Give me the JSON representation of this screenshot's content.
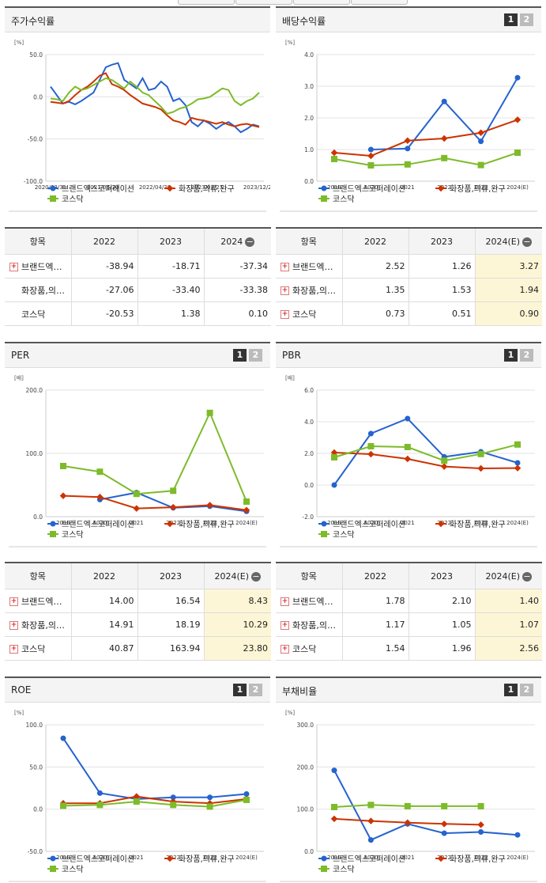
{
  "colors": {
    "brand": "#2563cf",
    "cosmetics": "#cc3300",
    "kosdaq": "#7dbb2a"
  },
  "panels": [
    {
      "id": "p1",
      "title": "주가수익률",
      "pager": false,
      "chart_data": {
        "type": "line",
        "unit": "[%]",
        "ylim": [
          -100,
          50
        ],
        "yticks": [
          "50.0",
          "0.0",
          "-50.0",
          "-100.0"
        ],
        "xticks": [
          "2020/03/31",
          "2021/06/30",
          "2022/04/29",
          "2023/03/27",
          "2023/12/28"
        ],
        "legend": [
          "브랜드엑스코퍼레이션",
          "화장품,의류,완구",
          "코스닥"
        ],
        "series": [
          {
            "key": "brand",
            "values": [
              12,
              2,
              -8,
              -6,
              -9,
              -5,
              0,
              5,
              20,
              35,
              38,
              40,
              20,
              15,
              10,
              22,
              8,
              10,
              18,
              12,
              -5,
              -2,
              -10,
              -30,
              -35,
              -28,
              -32,
              -38,
              -33,
              -30,
              -35,
              -42,
              -38,
              -33,
              -35
            ]
          },
          {
            "key": "cosmetics",
            "values": [
              -6,
              -7,
              -8,
              -5,
              2,
              8,
              12,
              18,
              25,
              28,
              15,
              12,
              8,
              2,
              -3,
              -8,
              -10,
              -12,
              -15,
              -22,
              -28,
              -30,
              -33,
              -25,
              -27,
              -28,
              -30,
              -32,
              -30,
              -33,
              -35,
              -33,
              -32,
              -34,
              -36
            ]
          },
          {
            "key": "kosdaq",
            "values": [
              -2,
              -3,
              -5,
              5,
              12,
              8,
              10,
              14,
              18,
              22,
              20,
              15,
              10,
              18,
              12,
              5,
              2,
              -5,
              -12,
              -20,
              -18,
              -14,
              -12,
              -8,
              -3,
              -2,
              0,
              5,
              10,
              8,
              -5,
              -10,
              -5,
              -2,
              5
            ]
          }
        ]
      }
    },
    {
      "id": "p2",
      "title": "배당수익률",
      "pager": true,
      "p1": "1",
      "p2": "2",
      "chart_data": {
        "type": "line",
        "unit": "[%]",
        "ylim": [
          0,
          4
        ],
        "yticks": [
          "4.0",
          "3.0",
          "2.0",
          "1.0",
          "0.0"
        ],
        "xticks": [
          "2019",
          "2020",
          "2021",
          "2022",
          "2023",
          "2024(E)"
        ],
        "legend": [
          "브랜드엑스코퍼레이션",
          "화장품,의류,완구",
          "코스닥"
        ],
        "series": [
          {
            "key": "brand",
            "values": [
              null,
              1.0,
              1.03,
              2.52,
              1.26,
              3.27
            ]
          },
          {
            "key": "cosmetics",
            "values": [
              0.9,
              0.8,
              1.28,
              1.35,
              1.53,
              1.94
            ]
          },
          {
            "key": "kosdaq",
            "values": [
              0.7,
              0.5,
              0.53,
              0.73,
              0.51,
              0.9
            ]
          }
        ]
      }
    },
    {
      "id": "p3",
      "title": "PER",
      "pager": true,
      "p1": "1",
      "p2": "2",
      "chart_data": {
        "type": "line",
        "unit": "[배]",
        "ylim": [
          0,
          200
        ],
        "yticks": [
          "200.0",
          "100.0",
          "0.0"
        ],
        "xticks": [
          "2019",
          "2020",
          "2021",
          "2022",
          "2023",
          "2024(E)"
        ],
        "legend": [
          "브랜드엑스코퍼레이션",
          "화장품,의류,완구",
          "코스닥"
        ],
        "series": [
          {
            "key": "brand",
            "values": [
              null,
              27,
              38,
              14.0,
              16.54,
              8.43
            ]
          },
          {
            "key": "cosmetics",
            "values": [
              33,
              31,
              13,
              14.91,
              18.19,
              10.29
            ]
          },
          {
            "key": "kosdaq",
            "values": [
              80,
              71,
              36,
              40.87,
              163.94,
              23.8
            ]
          }
        ]
      }
    },
    {
      "id": "p4",
      "title": "PBR",
      "pager": true,
      "p1": "1",
      "p2": "2",
      "chart_data": {
        "type": "line",
        "unit": "[배]",
        "ylim": [
          -2,
          6
        ],
        "yticks": [
          "6.0",
          "4.0",
          "2.0",
          "0.0",
          "-2.0"
        ],
        "xticks": [
          "2019",
          "2020",
          "2021",
          "2022",
          "2023",
          "2024(E)"
        ],
        "legend": [
          "브랜드엑스코퍼레이션",
          "화장품,의류,완구",
          "코스닥"
        ],
        "series": [
          {
            "key": "brand",
            "values": [
              0.0,
              3.25,
              4.2,
              1.78,
              2.1,
              1.4
            ]
          },
          {
            "key": "cosmetics",
            "values": [
              2.05,
              1.95,
              1.65,
              1.17,
              1.05,
              1.07
            ]
          },
          {
            "key": "kosdaq",
            "values": [
              1.75,
              2.45,
              2.4,
              1.54,
              1.96,
              2.56
            ]
          }
        ]
      }
    },
    {
      "id": "p5",
      "title": "ROE",
      "pager": true,
      "p1": "1",
      "p2": "2",
      "chart_data": {
        "type": "line",
        "unit": "[%]",
        "ylim": [
          -50,
          100
        ],
        "yticks": [
          "100.0",
          "50.0",
          "0.0",
          "-50.0"
        ],
        "xticks": [
          "2019",
          "2020",
          "2021",
          "2022",
          "2023",
          "2024(E)"
        ],
        "legend": [
          "브랜드엑스코퍼레이션",
          "화장품,의류,완구",
          "코스닥"
        ],
        "series": [
          {
            "key": "brand",
            "values": [
              84,
              19,
              12,
              14,
              14,
              18
            ]
          },
          {
            "key": "cosmetics",
            "values": [
              7,
              7,
              15,
              9,
              7,
              12
            ]
          },
          {
            "key": "kosdaq",
            "values": [
              4,
              5,
              9,
              5,
              3,
              11
            ]
          }
        ]
      }
    },
    {
      "id": "p6",
      "title": "부채비율",
      "pager": true,
      "p1": "1",
      "p2": "2",
      "chart_data": {
        "type": "line",
        "unit": "[%]",
        "ylim": [
          0,
          300
        ],
        "yticks": [
          "300.0",
          "200.0",
          "100.0",
          "0.0"
        ],
        "xticks": [
          "2019",
          "2020",
          "2021",
          "2022",
          "2023",
          "2024(E)"
        ],
        "legend": [
          "브랜드엑스코퍼레이션",
          "화장품,의류,완구",
          "코스닥"
        ],
        "series": [
          {
            "key": "brand",
            "values": [
              192,
              27,
              65,
              43,
              46,
              39
            ]
          },
          {
            "key": "cosmetics",
            "values": [
              77,
              72,
              68,
              65,
              63,
              null
            ]
          },
          {
            "key": "kosdaq",
            "values": [
              105,
              110,
              107,
              107,
              107,
              null
            ]
          }
        ]
      }
    }
  ],
  "tables": [
    {
      "id": "t1",
      "header": {
        "item": "항목",
        "c1": "2022",
        "c2": "2023",
        "c3": "2024"
      },
      "estimate_col": false,
      "rows": [
        {
          "name": "브랜드엑…",
          "plus": true,
          "v": [
            "-38.94",
            "-18.71",
            "-37.34"
          ]
        },
        {
          "name": "화장품,의…",
          "plus": false,
          "v": [
            "-27.06",
            "-33.40",
            "-33.38"
          ]
        },
        {
          "name": "코스닥",
          "plus": false,
          "v": [
            "-20.53",
            "1.38",
            "0.10"
          ]
        }
      ]
    },
    {
      "id": "t2",
      "header": {
        "item": "항목",
        "c1": "2022",
        "c2": "2023",
        "c3": "2024(E)"
      },
      "estimate_col": true,
      "rows": [
        {
          "name": "브랜드엑…",
          "plus": true,
          "v": [
            "2.52",
            "1.26",
            "3.27"
          ]
        },
        {
          "name": "화장품,의…",
          "plus": true,
          "v": [
            "1.35",
            "1.53",
            "1.94"
          ]
        },
        {
          "name": "코스닥",
          "plus": true,
          "v": [
            "0.73",
            "0.51",
            "0.90"
          ]
        }
      ]
    },
    {
      "id": "t3",
      "header": {
        "item": "항목",
        "c1": "2022",
        "c2": "2023",
        "c3": "2024(E)"
      },
      "estimate_col": true,
      "rows": [
        {
          "name": "브랜드엑…",
          "plus": true,
          "v": [
            "14.00",
            "16.54",
            "8.43"
          ]
        },
        {
          "name": "화장품,의…",
          "plus": true,
          "v": [
            "14.91",
            "18.19",
            "10.29"
          ]
        },
        {
          "name": "코스닥",
          "plus": true,
          "v": [
            "40.87",
            "163.94",
            "23.80"
          ]
        }
      ]
    },
    {
      "id": "t4",
      "header": {
        "item": "항목",
        "c1": "2022",
        "c2": "2023",
        "c3": "2024(E)"
      },
      "estimate_col": true,
      "rows": [
        {
          "name": "브랜드엑…",
          "plus": true,
          "v": [
            "1.78",
            "2.10",
            "1.40"
          ]
        },
        {
          "name": "화장품,의…",
          "plus": true,
          "v": [
            "1.17",
            "1.05",
            "1.07"
          ]
        },
        {
          "name": "코스닥",
          "plus": true,
          "v": [
            "1.54",
            "1.96",
            "2.56"
          ]
        }
      ]
    }
  ]
}
